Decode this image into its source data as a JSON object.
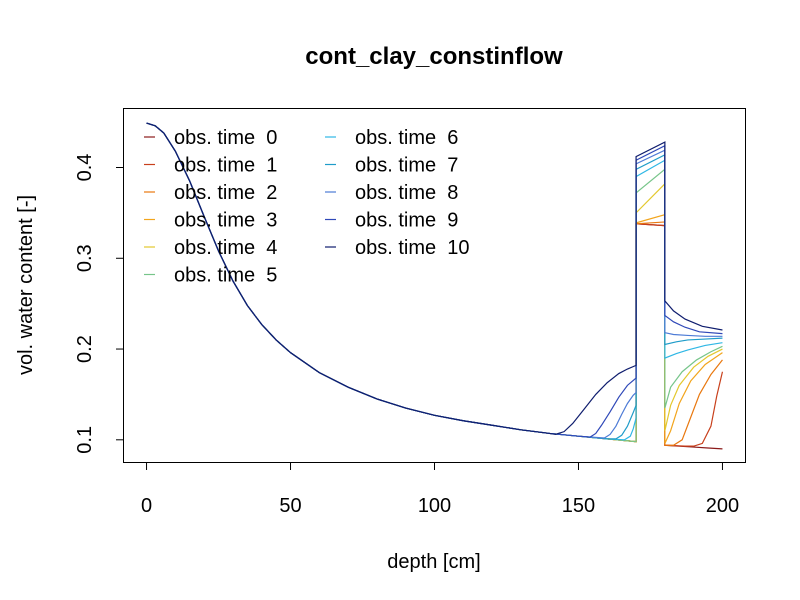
{
  "chart_data": {
    "type": "line",
    "title": "cont_clay_constinflow",
    "xlabel": "depth [cm]",
    "ylabel": "vol. water content [-]",
    "xlim": [
      -8,
      208
    ],
    "ylim": [
      0.075,
      0.465
    ],
    "xticks": [
      0,
      50,
      100,
      150,
      200
    ],
    "yticks": [
      0.1,
      0.2,
      0.3,
      0.4
    ],
    "grid": false,
    "legend_position": "top-left",
    "base_curve": [
      [
        0,
        0.449
      ],
      [
        3,
        0.446
      ],
      [
        6,
        0.438
      ],
      [
        10,
        0.418
      ],
      [
        15,
        0.385
      ],
      [
        20,
        0.346
      ],
      [
        25,
        0.308
      ],
      [
        30,
        0.275
      ],
      [
        35,
        0.248
      ],
      [
        40,
        0.227
      ],
      [
        45,
        0.21
      ],
      [
        50,
        0.196
      ],
      [
        60,
        0.174
      ],
      [
        70,
        0.158
      ],
      [
        80,
        0.145
      ],
      [
        90,
        0.135
      ],
      [
        100,
        0.127
      ],
      [
        110,
        0.121
      ],
      [
        120,
        0.116
      ],
      [
        130,
        0.111
      ],
      [
        140,
        0.107
      ],
      [
        150,
        0.104
      ],
      [
        160,
        0.101
      ],
      [
        170,
        0.098
      ]
    ],
    "series": [
      {
        "name": "obs. time  0",
        "color": "#8b1a1a",
        "front": null,
        "wet_lo": 0.338,
        "wet_hi": 0.336,
        "right": [
          [
            180,
            0.094
          ],
          [
            185,
            0.093
          ],
          [
            190,
            0.092
          ],
          [
            195,
            0.091
          ],
          [
            200,
            0.09
          ]
        ]
      },
      {
        "name": "obs. time  1",
        "color": "#c8401c",
        "front": null,
        "wet_lo": 0.338,
        "wet_hi": 0.336,
        "right": [
          [
            180,
            0.094
          ],
          [
            187,
            0.093
          ],
          [
            190,
            0.093
          ],
          [
            193,
            0.096
          ],
          [
            196,
            0.115
          ],
          [
            198,
            0.148
          ],
          [
            200,
            0.175
          ]
        ]
      },
      {
        "name": "obs. time  2",
        "color": "#e9780f",
        "front": null,
        "wet_lo": 0.338,
        "wet_hi": 0.34,
        "right": [
          [
            180,
            0.094
          ],
          [
            183,
            0.094
          ],
          [
            186,
            0.1
          ],
          [
            189,
            0.125
          ],
          [
            192,
            0.15
          ],
          [
            196,
            0.172
          ],
          [
            200,
            0.188
          ]
        ]
      },
      {
        "name": "obs. time  3",
        "color": "#f2a51d",
        "front": null,
        "wet_lo": 0.339,
        "wet_hi": 0.348,
        "right": [
          [
            180,
            0.096
          ],
          [
            182,
            0.11
          ],
          [
            185,
            0.14
          ],
          [
            189,
            0.165
          ],
          [
            194,
            0.183
          ],
          [
            200,
            0.196
          ]
        ]
      },
      {
        "name": "obs. time  4",
        "color": "#e3c82e",
        "front": null,
        "wet_lo": 0.35,
        "wet_hi": 0.382,
        "right": [
          [
            180,
            0.11
          ],
          [
            182,
            0.138
          ],
          [
            185,
            0.16
          ],
          [
            190,
            0.18
          ],
          [
            195,
            0.192
          ],
          [
            200,
            0.2
          ]
        ]
      },
      {
        "name": "obs. time  5",
        "color": "#77c58a",
        "front": null,
        "wet_lo": 0.372,
        "wet_hi": 0.398,
        "right": [
          [
            180,
            0.135
          ],
          [
            182,
            0.158
          ],
          [
            186,
            0.175
          ],
          [
            191,
            0.188
          ],
          [
            196,
            0.197
          ],
          [
            200,
            0.203
          ]
        ]
      },
      {
        "name": "obs. time  6",
        "color": "#2fb7e5",
        "front": [
          [
            166,
            0.1
          ],
          [
            168,
            0.104
          ],
          [
            169,
            0.112
          ],
          [
            170,
            0.124
          ]
        ],
        "wet_lo": 0.39,
        "wet_hi": 0.408,
        "right": [
          [
            180,
            0.19
          ],
          [
            184,
            0.195
          ],
          [
            188,
            0.199
          ],
          [
            194,
            0.204
          ],
          [
            200,
            0.207
          ]
        ]
      },
      {
        "name": "obs. time  7",
        "color": "#1f9cc9",
        "front": [
          [
            163,
            0.101
          ],
          [
            165,
            0.105
          ],
          [
            167,
            0.115
          ],
          [
            169,
            0.13
          ],
          [
            170,
            0.138
          ]
        ],
        "wet_lo": 0.398,
        "wet_hi": 0.414,
        "right": [
          [
            180,
            0.205
          ],
          [
            184,
            0.208
          ],
          [
            188,
            0.21
          ],
          [
            194,
            0.211
          ],
          [
            200,
            0.212
          ]
        ]
      },
      {
        "name": "obs. time  8",
        "color": "#4d7bd6",
        "front": [
          [
            159,
            0.102
          ],
          [
            161,
            0.106
          ],
          [
            163,
            0.115
          ],
          [
            165,
            0.128
          ],
          [
            167,
            0.14
          ],
          [
            169,
            0.149
          ],
          [
            170,
            0.152
          ]
        ],
        "wet_lo": 0.404,
        "wet_hi": 0.419,
        "right": [
          [
            180,
            0.218
          ],
          [
            183,
            0.216
          ],
          [
            188,
            0.215
          ],
          [
            194,
            0.214
          ],
          [
            200,
            0.214
          ]
        ]
      },
      {
        "name": "obs. time  9",
        "color": "#2f48b8",
        "front": [
          [
            154,
            0.103
          ],
          [
            156,
            0.107
          ],
          [
            158,
            0.116
          ],
          [
            161,
            0.131
          ],
          [
            164,
            0.147
          ],
          [
            167,
            0.16
          ],
          [
            170,
            0.168
          ]
        ],
        "wet_lo": 0.408,
        "wet_hi": 0.424,
        "right": [
          [
            180,
            0.237
          ],
          [
            183,
            0.23
          ],
          [
            187,
            0.224
          ],
          [
            192,
            0.219
          ],
          [
            200,
            0.217
          ]
        ]
      },
      {
        "name": "obs. time  10",
        "color": "#0f1d6e",
        "front": [
          [
            142,
            0.106
          ],
          [
            145,
            0.109
          ],
          [
            148,
            0.118
          ],
          [
            152,
            0.134
          ],
          [
            156,
            0.15
          ],
          [
            160,
            0.163
          ],
          [
            164,
            0.173
          ],
          [
            167,
            0.178
          ],
          [
            170,
            0.182
          ]
        ],
        "wet_lo": 0.412,
        "wet_hi": 0.428,
        "right": [
          [
            180,
            0.253
          ],
          [
            183,
            0.242
          ],
          [
            187,
            0.233
          ],
          [
            193,
            0.225
          ],
          [
            200,
            0.221
          ]
        ]
      }
    ]
  }
}
